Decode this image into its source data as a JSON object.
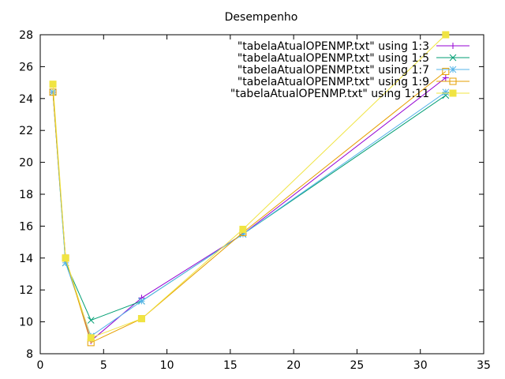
{
  "chart_data": {
    "type": "line",
    "title": "Desempenho",
    "xlabel": "",
    "ylabel": "",
    "xlim": [
      0,
      35
    ],
    "ylim": [
      8,
      28
    ],
    "xticks": [
      0,
      5,
      10,
      15,
      20,
      25,
      30,
      35
    ],
    "yticks": [
      8,
      10,
      12,
      14,
      16,
      18,
      20,
      22,
      24,
      26,
      28
    ],
    "grid": false,
    "legend_position": "top-right",
    "x": [
      1,
      2,
      4,
      8,
      16,
      32
    ],
    "series": [
      {
        "name": "\"tabelaAtualOPENMP.txt\" using 1:3",
        "color": "#9400d3",
        "marker": "plus",
        "values": [
          24.4,
          14.0,
          8.8,
          11.5,
          15.5,
          25.3
        ]
      },
      {
        "name": "\"tabelaAtualOPENMP.txt\" using 1:5",
        "color": "#009e73",
        "marker": "x",
        "values": [
          24.4,
          13.7,
          10.1,
          11.3,
          15.5,
          24.2
        ]
      },
      {
        "name": "\"tabelaAtualOPENMP.txt\" using 1:7",
        "color": "#56b4e9",
        "marker": "star",
        "values": [
          24.4,
          13.7,
          9.1,
          11.3,
          15.5,
          24.4
        ]
      },
      {
        "name": "\"tabelaAtualOPENMP.txt\" using 1:9",
        "color": "#e69f00",
        "marker": "square-open",
        "values": [
          24.4,
          14.0,
          8.7,
          10.2,
          15.6,
          25.7
        ]
      },
      {
        "name": "\"tabelaAtualOPENMP.txt\" using 1:11",
        "color": "#f0e442",
        "marker": "square-filled",
        "values": [
          24.9,
          14.0,
          9.0,
          10.2,
          15.8,
          28.0
        ]
      }
    ]
  }
}
